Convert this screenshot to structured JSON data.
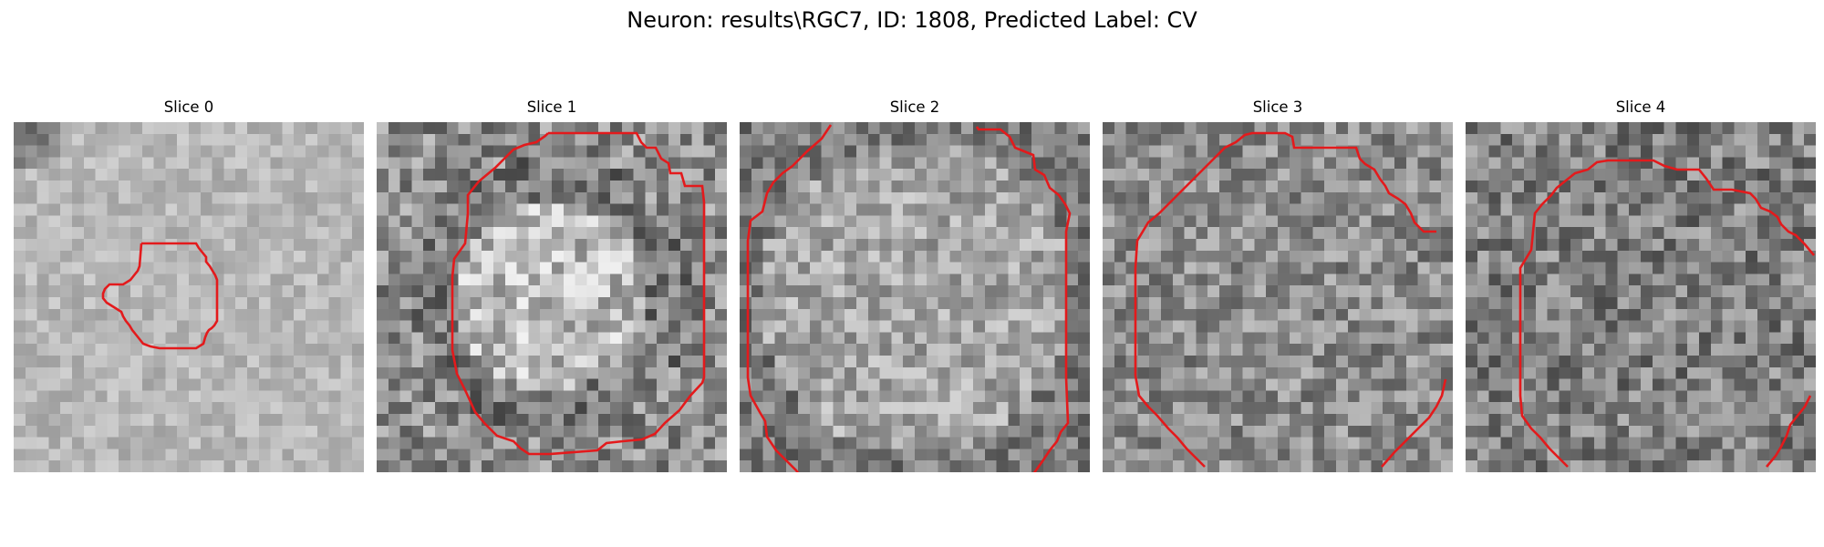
{
  "suptitle": "Neuron: results\\RGC7, ID: 1808, Predicted Label: CV",
  "colormap": "gray",
  "contour_color": "#e31a1c",
  "panels": [
    {
      "title": "Slice 0",
      "brightness": 0.72,
      "contrast": 0.1,
      "contour": [
        [
          3.8,
          0.0
        ],
        [
          5.5,
          -0.2
        ],
        [
          5.8,
          0.0
        ],
        [
          6.0,
          0.2
        ],
        [
          6.3,
          0.5
        ],
        [
          6.5,
          1.0
        ],
        [
          6.6,
          1.5
        ],
        [
          6.7,
          2.0
        ],
        [
          6.6,
          2.5
        ],
        [
          6.3,
          2.8
        ],
        [
          6.0,
          3.0
        ],
        [
          5.8,
          3.1
        ],
        [
          5.5,
          3.2
        ],
        [
          5.0,
          3.3
        ],
        [
          4.5,
          3.3
        ],
        [
          4.0,
          3.2
        ],
        [
          3.5,
          3.0
        ],
        [
          3.2,
          2.7
        ],
        [
          3.0,
          2.4
        ],
        [
          2.8,
          2.0
        ],
        [
          2.6,
          1.7
        ],
        [
          2.4,
          1.5
        ],
        [
          2.2,
          1.2
        ],
        [
          2.3,
          0.9
        ],
        [
          2.6,
          0.8
        ],
        [
          2.8,
          0.6
        ],
        [
          3.2,
          0.4
        ],
        [
          3.5,
          0.2
        ],
        [
          3.8,
          0.0
        ]
      ]
    },
    {
      "title": "Slice 1",
      "brightness": 0.55,
      "contrast": 0.22,
      "contour": [
        [
          4.5,
          -0.6
        ],
        [
          6.0,
          -0.6
        ],
        [
          6.2,
          -0.2
        ],
        [
          6.4,
          0.0
        ],
        [
          6.6,
          0.2
        ],
        [
          6.8,
          0.5
        ],
        [
          7.0,
          0.8
        ],
        [
          7.2,
          1.0
        ],
        [
          7.4,
          1.3
        ],
        [
          7.4,
          2.0
        ],
        [
          7.4,
          3.0
        ],
        [
          7.4,
          4.0
        ],
        [
          7.2,
          4.5
        ],
        [
          7.0,
          4.8
        ],
        [
          6.7,
          5.2
        ],
        [
          6.4,
          5.6
        ],
        [
          6.0,
          5.9
        ],
        [
          5.6,
          6.1
        ],
        [
          5.0,
          6.2
        ],
        [
          4.5,
          6.2
        ],
        [
          4.0,
          6.1
        ],
        [
          3.6,
          5.9
        ],
        [
          3.2,
          5.6
        ],
        [
          2.8,
          5.2
        ],
        [
          2.6,
          4.7
        ],
        [
          2.4,
          4.2
        ],
        [
          2.4,
          3.5
        ],
        [
          2.4,
          2.5
        ],
        [
          2.4,
          1.5
        ],
        [
          2.6,
          1.0
        ],
        [
          2.9,
          0.6
        ],
        [
          3.3,
          0.2
        ],
        [
          3.7,
          -0.2
        ],
        [
          4.1,
          -0.4
        ],
        [
          4.5,
          -0.6
        ]
      ]
    },
    {
      "title": "Slice 2",
      "brightness": 0.6,
      "contrast": 0.18,
      "contour": [
        [
          1.8,
          0.0
        ],
        [
          1.6,
          0.2
        ],
        [
          1.3,
          0.5
        ],
        [
          1.0,
          0.8
        ],
        [
          0.8,
          1.0
        ],
        [
          0.6,
          1.4
        ],
        [
          0.5,
          2.0
        ],
        [
          0.4,
          3.0
        ],
        [
          0.5,
          4.0
        ],
        [
          0.6,
          4.6
        ],
        [
          0.8,
          5.0
        ],
        [
          1.1,
          5.4
        ],
        [
          1.4,
          5.7
        ],
        [
          1.8,
          5.9
        ],
        [
          2.3,
          6.0
        ],
        [
          2.5,
          6.2
        ]
      ]
    },
    {
      "title": "Slice 3",
      "brightness": 0.55,
      "contrast": 0.2,
      "contour": [
        [
          2.0,
          1.0
        ],
        [
          2.4,
          0.6
        ],
        [
          2.8,
          0.3
        ],
        [
          3.0,
          0.0
        ],
        [
          3.2,
          -0.2
        ],
        [
          3.6,
          -0.4
        ],
        [
          4.0,
          -0.6
        ],
        [
          4.5,
          -0.6
        ],
        [
          5.5,
          -0.4
        ],
        [
          5.8,
          -0.2
        ],
        [
          6.0,
          0.0
        ],
        [
          6.3,
          0.2
        ],
        [
          6.5,
          0.5
        ],
        [
          6.8,
          0.8
        ],
        [
          7.0,
          1.1
        ],
        [
          7.3,
          1.5
        ],
        [
          7.5,
          2.0
        ]
      ]
    },
    {
      "title": "Slice 4",
      "brightness": 0.5,
      "contrast": 0.22,
      "contour": [
        [
          2.2,
          0.8
        ],
        [
          2.6,
          0.5
        ],
        [
          3.0,
          0.2
        ],
        [
          3.5,
          0.0
        ],
        [
          4.0,
          -0.1
        ],
        [
          5.0,
          -0.1
        ],
        [
          5.5,
          0.0
        ],
        [
          6.0,
          0.2
        ],
        [
          6.4,
          0.4
        ],
        [
          6.8,
          0.6
        ],
        [
          7.0,
          0.9
        ],
        [
          7.2,
          1.2
        ],
        [
          7.5,
          1.5
        ]
      ]
    }
  ]
}
